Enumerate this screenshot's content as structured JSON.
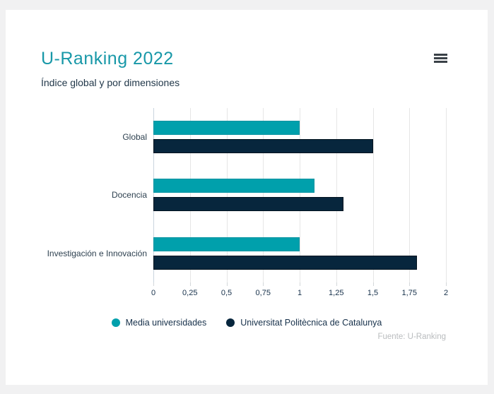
{
  "header": {
    "title": "U-Ranking 2022",
    "subtitle": "Índice global y por dimensiones",
    "menu_icon": "hamburger-menu-icon"
  },
  "chart_data": {
    "type": "bar",
    "orientation": "horizontal",
    "title": "U-Ranking 2022",
    "subtitle": "Índice global y por dimensiones",
    "categories": [
      "Global",
      "Docencia",
      "Investigación e Innovación"
    ],
    "series": [
      {
        "name": "Media universidades",
        "color": "#00a0ac",
        "border_color": "#0593a1",
        "values": [
          1.0,
          1.1,
          1.0
        ]
      },
      {
        "name": "Universitat Politècnica de Catalunya",
        "color": "#07263d",
        "border_color": "#02131f",
        "values": [
          1.5,
          1.3,
          1.8
        ]
      }
    ],
    "xlim": [
      0,
      2
    ],
    "x_tick_values": [
      0,
      0.25,
      0.5,
      0.75,
      1,
      1.25,
      1.5,
      1.75,
      2
    ],
    "x_ticks": [
      "0",
      "0,25",
      "0,5",
      "0,75",
      "1",
      "1,25",
      "1,5",
      "1,75",
      "2"
    ],
    "grid": true,
    "grid_color": "#e6e6e6",
    "axis_line_color": "#c9d4de",
    "legend_position": "bottom"
  },
  "footer": {
    "source": "Fuente: U-Ranking"
  },
  "colors": {
    "accent_teal": "#1898a8",
    "dark_navy": "#07263d",
    "page_background": "#f1f1f2",
    "card_background": "#ffffff"
  }
}
